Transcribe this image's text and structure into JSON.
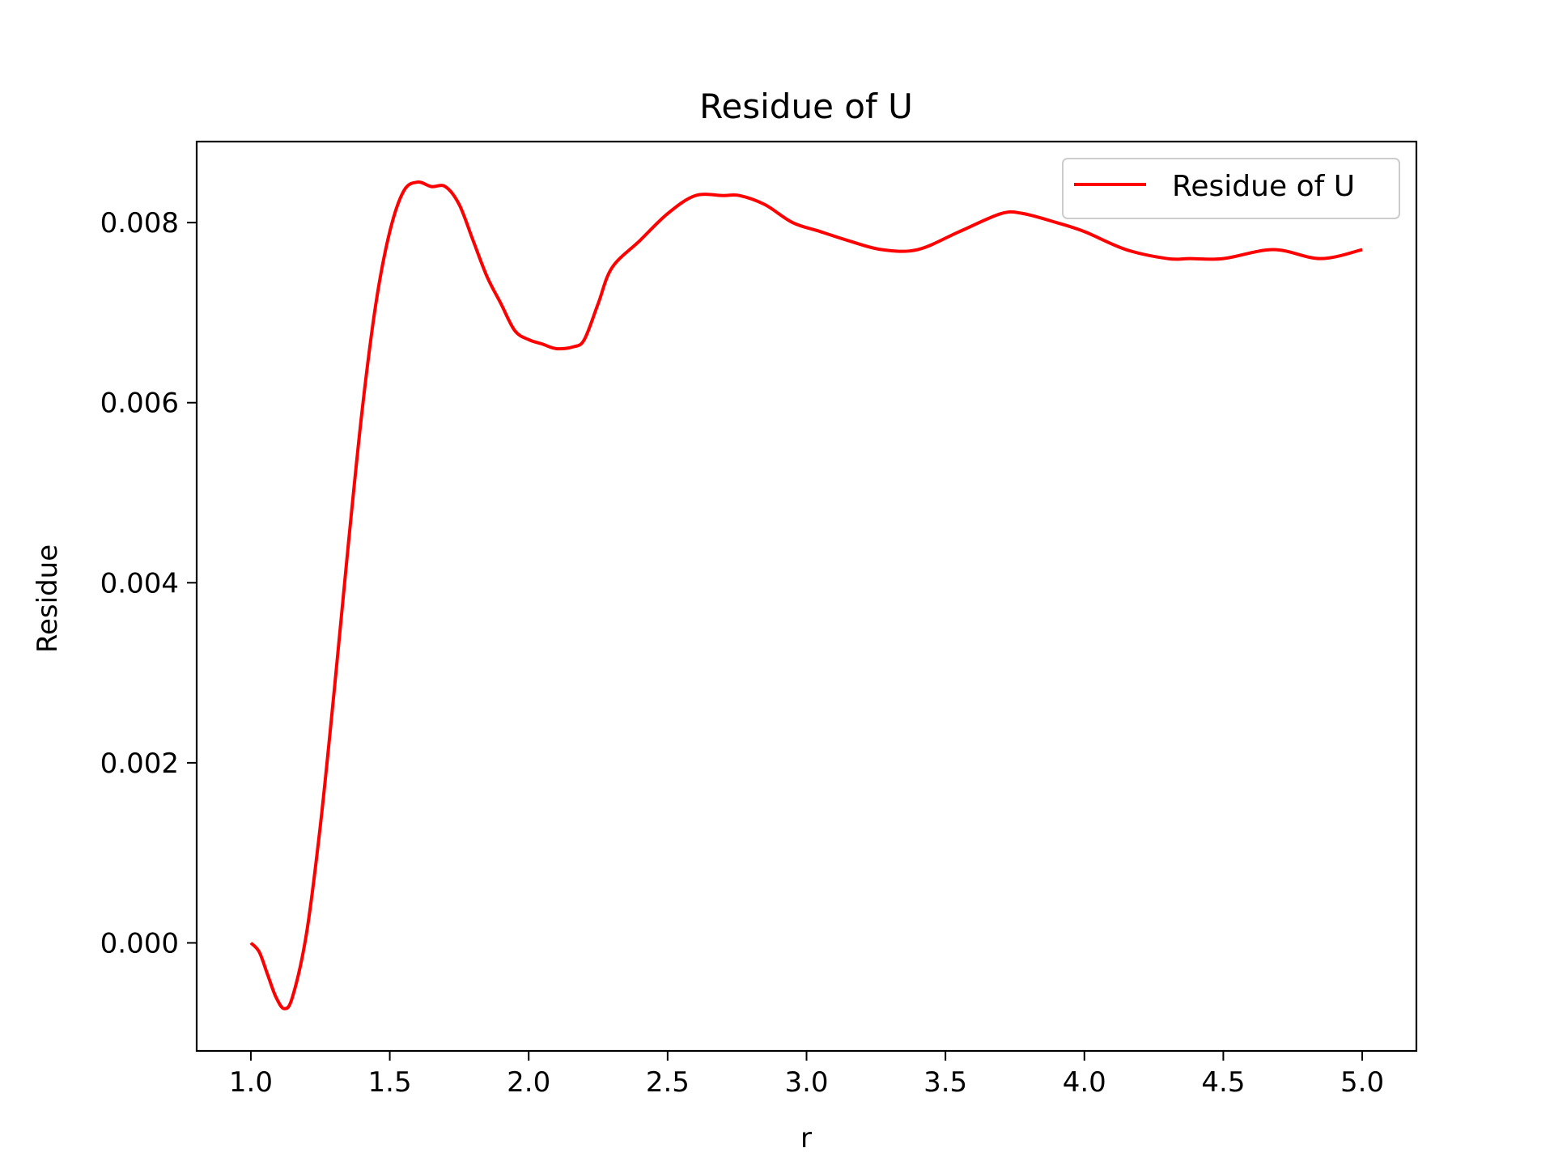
{
  "chart_data": {
    "type": "line",
    "title": "Residue of U",
    "xlabel": "r",
    "ylabel": "Residue",
    "xlim": [
      0.805,
      5.195
    ],
    "ylim": [
      -0.0012,
      0.0089
    ],
    "xticks": [
      1.0,
      1.5,
      2.0,
      2.5,
      3.0,
      3.5,
      4.0,
      4.5,
      5.0
    ],
    "xtick_labels": [
      "1.0",
      "1.5",
      "2.0",
      "2.5",
      "3.0",
      "3.5",
      "4.0",
      "4.5",
      "5.0"
    ],
    "yticks": [
      0.0,
      0.002,
      0.004,
      0.006,
      0.008
    ],
    "ytick_labels": [
      "0.000",
      "0.002",
      "0.004",
      "0.006",
      "0.008"
    ],
    "grid": false,
    "legend": {
      "position": "top-right",
      "entries": [
        "Residue of U"
      ]
    },
    "series": [
      {
        "name": "Residue of U",
        "color": "#ff0000",
        "x": [
          1.0,
          1.03,
          1.06,
          1.09,
          1.12,
          1.15,
          1.2,
          1.25,
          1.3,
          1.35,
          1.4,
          1.45,
          1.5,
          1.55,
          1.6,
          1.65,
          1.7,
          1.75,
          1.8,
          1.85,
          1.9,
          1.95,
          2.0,
          2.05,
          2.1,
          2.16,
          2.2,
          2.25,
          2.3,
          2.4,
          2.5,
          2.6,
          2.7,
          2.76,
          2.85,
          2.95,
          3.05,
          3.15,
          3.27,
          3.4,
          3.55,
          3.7,
          3.78,
          3.9,
          4.0,
          4.15,
          4.3,
          4.38,
          4.5,
          4.68,
          4.85,
          5.0
        ],
        "y": [
          0.0,
          -0.0001,
          -0.00035,
          -0.0006,
          -0.00073,
          -0.0006,
          0.0001,
          0.0013,
          0.0028,
          0.0044,
          0.0059,
          0.0071,
          0.0079,
          0.00835,
          0.00845,
          0.0084,
          0.0084,
          0.0082,
          0.0078,
          0.0074,
          0.0071,
          0.0068,
          0.0067,
          0.00665,
          0.0066,
          0.00662,
          0.0067,
          0.0071,
          0.0075,
          0.0078,
          0.0081,
          0.0083,
          0.0083,
          0.0083,
          0.0082,
          0.008,
          0.0079,
          0.0078,
          0.0077,
          0.0077,
          0.0079,
          0.0081,
          0.0081,
          0.008,
          0.0079,
          0.0077,
          0.0076,
          0.0076,
          0.0076,
          0.0077,
          0.0076,
          0.0077
        ]
      }
    ]
  }
}
